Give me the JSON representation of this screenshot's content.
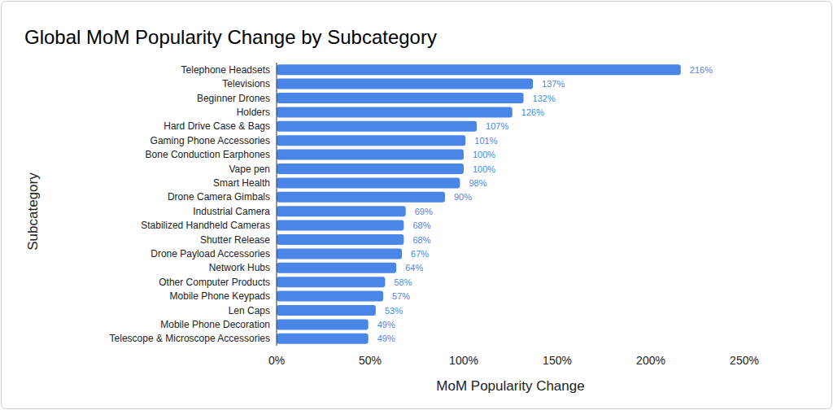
{
  "chart_data": {
    "type": "bar",
    "orientation": "horizontal",
    "title": "Global MoM Popularity Change by Subcategory",
    "x_label": "MoM Popularity Change",
    "y_label": "Subcategory",
    "categories": [
      "Telephone Headsets",
      "Televisions",
      "Beginner Drones",
      "Holders",
      "Hard Drive Case & Bags",
      "Gaming Phone Accessories",
      "Bone Conduction Earphones",
      "Vape pen",
      "Smart Health",
      "Drone Camera Gimbals",
      "Industrial Camera",
      "Stabilized Handheld Cameras",
      "Shutter Release",
      "Drone Payload Accessories",
      "Network Hubs",
      "Other Computer Products",
      "Mobile Phone Keypads",
      "Len Caps",
      "Mobile Phone Decoration",
      "Telescope & Microscope Accessories"
    ],
    "values": [
      216,
      137,
      132,
      126,
      107,
      101,
      100,
      100,
      98,
      90,
      69,
      68,
      68,
      67,
      64,
      58,
      57,
      53,
      49,
      49
    ],
    "value_labels": [
      "216%",
      "137%",
      "132%",
      "126%",
      "107%",
      "101%",
      "100%",
      "100%",
      "98%",
      "90%",
      "69%",
      "68%",
      "68%",
      "67%",
      "64%",
      "58%",
      "57%",
      "53%",
      "49%",
      "49%"
    ],
    "data_labels": true,
    "color": "#4a86e8",
    "xlim": [
      0,
      250
    ],
    "xticks": [
      {
        "value": 0,
        "label": "0%"
      },
      {
        "value": 50,
        "label": "50%"
      },
      {
        "value": 100,
        "label": "100%"
      },
      {
        "value": 150,
        "label": "150%"
      },
      {
        "value": 200,
        "label": "200%"
      },
      {
        "value": 250,
        "label": "250%"
      }
    ],
    "grid": false
  }
}
